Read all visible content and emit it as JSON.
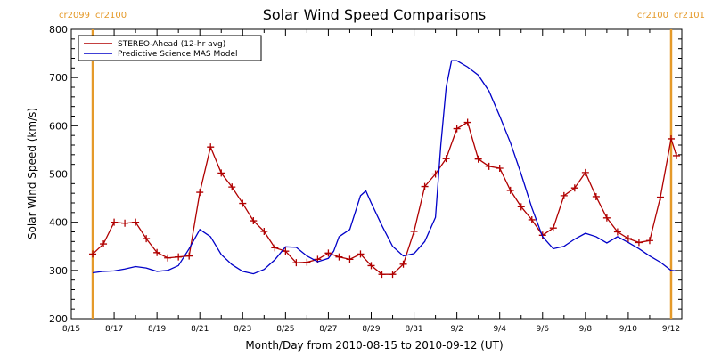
{
  "chart_data": {
    "type": "line",
    "title": "Solar Wind Speed Comparisons",
    "xlabel": "Month/Day from 2010-08-15 to 2010-09-12 (UT)",
    "ylabel": "Solar Wind Speed (km/s)",
    "xlim": [
      "2010-08-15",
      "2010-09-12T12:00"
    ],
    "ylim": [
      200,
      800
    ],
    "x_tick_labels": [
      "8/15",
      "8/17",
      "8/19",
      "8/21",
      "8/23",
      "8/25",
      "8/27",
      "8/29",
      "8/31",
      "9/2",
      "9/4",
      "9/6",
      "9/8",
      "9/10",
      "9/12"
    ],
    "y_tick_labels": [
      "200",
      "300",
      "400",
      "500",
      "600",
      "700",
      "800"
    ],
    "grid": false,
    "legend_position": "top-left",
    "carrington_markers": [
      {
        "date": "2010-08-16",
        "label_left": "cr2099",
        "label_right": "cr2100",
        "color": "#e59a2a"
      },
      {
        "date": "2010-09-12",
        "label_left": "cr2100",
        "label_right": "cr2101",
        "color": "#e59a2a"
      }
    ],
    "series": [
      {
        "name": "STEREO-Ahead (12-hr avg)",
        "color": "#b00000",
        "marker": "+",
        "points": [
          [
            "2010-08-16T00:00",
            334
          ],
          [
            "2010-08-16T12:00",
            355
          ],
          [
            "2010-08-17T00:00",
            400
          ],
          [
            "2010-08-17T12:00",
            398
          ],
          [
            "2010-08-18T00:00",
            400
          ],
          [
            "2010-08-18T12:00",
            366
          ],
          [
            "2010-08-19T00:00",
            337
          ],
          [
            "2010-08-19T12:00",
            326
          ],
          [
            "2010-08-20T00:00",
            328
          ],
          [
            "2010-08-20T12:00",
            330
          ],
          [
            "2010-08-21T00:00",
            462
          ],
          [
            "2010-08-21T12:00",
            556
          ],
          [
            "2010-08-22T00:00",
            502
          ],
          [
            "2010-08-22T12:00",
            473
          ],
          [
            "2010-08-23T00:00",
            439
          ],
          [
            "2010-08-23T12:00",
            403
          ],
          [
            "2010-08-24T00:00",
            381
          ],
          [
            "2010-08-24T12:00",
            347
          ],
          [
            "2010-08-25T00:00",
            340
          ],
          [
            "2010-08-25T12:00",
            316
          ],
          [
            "2010-08-26T00:00",
            317
          ],
          [
            "2010-08-26T12:00",
            323
          ],
          [
            "2010-08-27T00:00",
            336
          ],
          [
            "2010-08-27T12:00",
            328
          ],
          [
            "2010-08-28T00:00",
            323
          ],
          [
            "2010-08-28T12:00",
            334
          ],
          [
            "2010-08-29T00:00",
            310
          ],
          [
            "2010-08-29T12:00",
            292
          ],
          [
            "2010-08-30T00:00",
            292
          ],
          [
            "2010-08-30T12:00",
            313
          ],
          [
            "2010-08-31T00:00",
            381
          ],
          [
            "2010-08-31T12:00",
            474
          ],
          [
            "2010-09-01T00:00",
            500
          ],
          [
            "2010-09-01T12:00",
            532
          ],
          [
            "2010-09-02T00:00",
            594
          ],
          [
            "2010-09-02T12:00",
            607
          ],
          [
            "2010-09-03T00:00",
            531
          ],
          [
            "2010-09-03T12:00",
            516
          ],
          [
            "2010-09-04T00:00",
            512
          ],
          [
            "2010-09-04T12:00",
            466
          ],
          [
            "2010-09-05T00:00",
            432
          ],
          [
            "2010-09-05T12:00",
            405
          ],
          [
            "2010-09-06T00:00",
            373
          ],
          [
            "2010-09-06T12:00",
            388
          ],
          [
            "2010-09-07T00:00",
            455
          ],
          [
            "2010-09-07T12:00",
            471
          ],
          [
            "2010-09-08T00:00",
            503
          ],
          [
            "2010-09-08T12:00",
            453
          ],
          [
            "2010-09-09T00:00",
            409
          ],
          [
            "2010-09-09T12:00",
            380
          ],
          [
            "2010-09-10T00:00",
            366
          ],
          [
            "2010-09-10T12:00",
            358
          ],
          [
            "2010-09-11T00:00",
            362
          ],
          [
            "2010-09-11T12:00",
            452
          ],
          [
            "2010-09-12T00:00",
            573
          ],
          [
            "2010-09-12T06:00",
            538
          ]
        ]
      },
      {
        "name": "Predictive Science MAS Model",
        "color": "#0000c8",
        "marker": "none",
        "points": [
          [
            "2010-08-16T00:00",
            295
          ],
          [
            "2010-08-16T12:00",
            298
          ],
          [
            "2010-08-17T00:00",
            299
          ],
          [
            "2010-08-17T12:00",
            303
          ],
          [
            "2010-08-18T00:00",
            308
          ],
          [
            "2010-08-18T12:00",
            305
          ],
          [
            "2010-08-19T00:00",
            298
          ],
          [
            "2010-08-19T12:00",
            300
          ],
          [
            "2010-08-20T00:00",
            310
          ],
          [
            "2010-08-20T12:00",
            345
          ],
          [
            "2010-08-21T00:00",
            385
          ],
          [
            "2010-08-21T12:00",
            370
          ],
          [
            "2010-08-22T00:00",
            333
          ],
          [
            "2010-08-22T12:00",
            312
          ],
          [
            "2010-08-23T00:00",
            298
          ],
          [
            "2010-08-23T12:00",
            293
          ],
          [
            "2010-08-24T00:00",
            302
          ],
          [
            "2010-08-24T12:00",
            322
          ],
          [
            "2010-08-25T00:00",
            349
          ],
          [
            "2010-08-25T12:00",
            348
          ],
          [
            "2010-08-26T00:00",
            330
          ],
          [
            "2010-08-26T12:00",
            318
          ],
          [
            "2010-08-27T00:00",
            325
          ],
          [
            "2010-08-27T06:00",
            340
          ],
          [
            "2010-08-27T12:00",
            370
          ],
          [
            "2010-08-28T00:00",
            385
          ],
          [
            "2010-08-28T12:00",
            455
          ],
          [
            "2010-08-28T18:00",
            465
          ],
          [
            "2010-08-29T00:00",
            440
          ],
          [
            "2010-08-29T12:00",
            393
          ],
          [
            "2010-08-30T00:00",
            350
          ],
          [
            "2010-08-30T12:00",
            330
          ],
          [
            "2010-08-31T00:00",
            335
          ],
          [
            "2010-08-31T12:00",
            360
          ],
          [
            "2010-09-01T00:00",
            410
          ],
          [
            "2010-09-01T06:00",
            560
          ],
          [
            "2010-09-01T12:00",
            680
          ],
          [
            "2010-09-01T18:00",
            735
          ],
          [
            "2010-09-02T00:00",
            735
          ],
          [
            "2010-09-02T12:00",
            722
          ],
          [
            "2010-09-03T00:00",
            705
          ],
          [
            "2010-09-03T12:00",
            672
          ],
          [
            "2010-09-04T00:00",
            620
          ],
          [
            "2010-09-04T12:00",
            565
          ],
          [
            "2010-09-05T00:00",
            500
          ],
          [
            "2010-09-05T12:00",
            430
          ],
          [
            "2010-09-06T00:00",
            370
          ],
          [
            "2010-09-06T12:00",
            345
          ],
          [
            "2010-09-07T00:00",
            350
          ],
          [
            "2010-09-07T12:00",
            365
          ],
          [
            "2010-09-08T00:00",
            377
          ],
          [
            "2010-09-08T12:00",
            370
          ],
          [
            "2010-09-09T00:00",
            357
          ],
          [
            "2010-09-09T12:00",
            370
          ],
          [
            "2010-09-10T00:00",
            358
          ],
          [
            "2010-09-10T12:00",
            345
          ],
          [
            "2010-09-11T00:00",
            330
          ],
          [
            "2010-09-11T12:00",
            317
          ],
          [
            "2010-09-12T00:00",
            300
          ],
          [
            "2010-09-12T06:00",
            299
          ]
        ]
      }
    ]
  }
}
